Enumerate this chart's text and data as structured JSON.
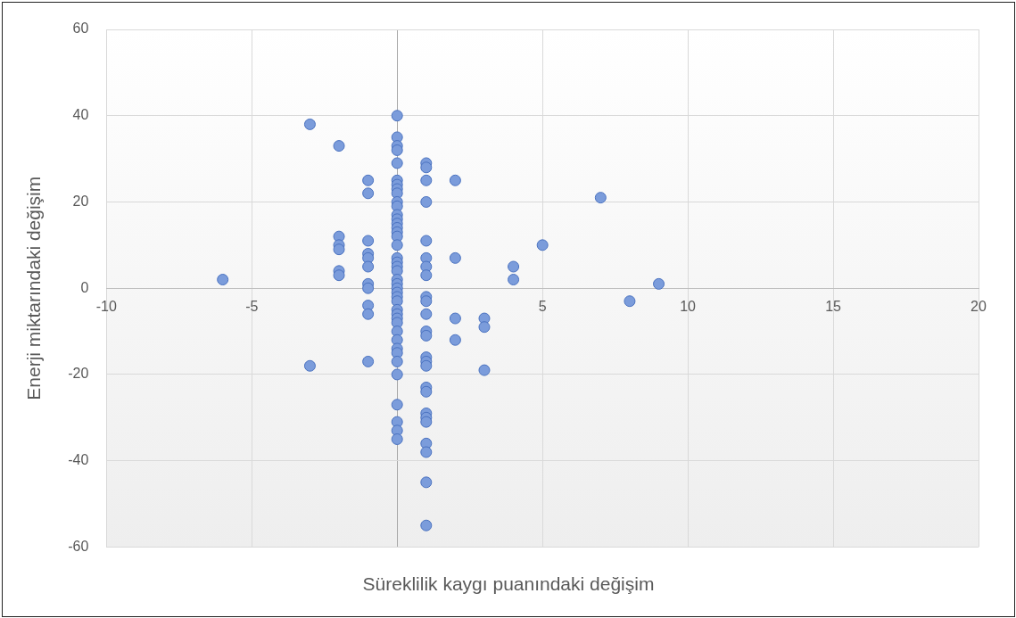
{
  "chart_data": {
    "type": "scatter",
    "xlabel": "Süreklilik kaygı puanındaki değişim",
    "ylabel": "Enerji miktarındaki değişim",
    "x": [
      -6,
      -3,
      -3,
      -2,
      -2,
      -2,
      -2,
      -2,
      -2,
      -1,
      -1,
      -1,
      -1,
      -1,
      -1,
      -1,
      -1,
      -1,
      -1,
      -1,
      0,
      0,
      0,
      0,
      0,
      0,
      0,
      0,
      0,
      0,
      0,
      0,
      0,
      0,
      0,
      0,
      0,
      0,
      0,
      0,
      0,
      0,
      0,
      0,
      0,
      0,
      0,
      0,
      0,
      0,
      0,
      0,
      0,
      0,
      0,
      0,
      0,
      0,
      0,
      0,
      0,
      0,
      1,
      1,
      1,
      1,
      1,
      1,
      1,
      1,
      1,
      1,
      1,
      1,
      1,
      1,
      1,
      1,
      1,
      1,
      1,
      1,
      1,
      1,
      1,
      1,
      1,
      2,
      2,
      2,
      2,
      3,
      3,
      3,
      4,
      4,
      5,
      7,
      8,
      9
    ],
    "values": [
      2,
      38,
      -18,
      33,
      12,
      10,
      9,
      4,
      3,
      25,
      22,
      11,
      8,
      7,
      5,
      1,
      0,
      -4,
      -6,
      -17,
      40,
      35,
      33,
      32,
      29,
      25,
      24,
      23,
      22,
      20,
      19,
      17,
      16,
      15,
      14,
      13,
      12,
      10,
      7,
      6,
      5,
      4,
      2,
      1,
      0,
      -1,
      -2,
      -3,
      -5,
      -6,
      -7,
      -8,
      -10,
      -12,
      -14,
      -15,
      -17,
      -20,
      -27,
      -31,
      -33,
      -35,
      29,
      28,
      25,
      20,
      11,
      7,
      5,
      3,
      -2,
      -3,
      -6,
      -10,
      -11,
      -16,
      -17,
      -18,
      -23,
      -24,
      -29,
      -30,
      -31,
      -36,
      -38,
      -45,
      -55,
      25,
      7,
      -7,
      -12,
      -7,
      -9,
      -19,
      5,
      2,
      10,
      21,
      -3,
      1
    ],
    "color": "#7b9cdb",
    "marker": "circle",
    "grid": true,
    "legend": false,
    "xlim": [
      -10,
      20
    ],
    "xticks": [
      -10,
      -5,
      {
        "value": 0,
        "label": null
      },
      5,
      10,
      15,
      20
    ],
    "ylim": [
      -60,
      60
    ],
    "yticks": [
      -60,
      -40,
      -20,
      0,
      20,
      40,
      60
    ]
  }
}
